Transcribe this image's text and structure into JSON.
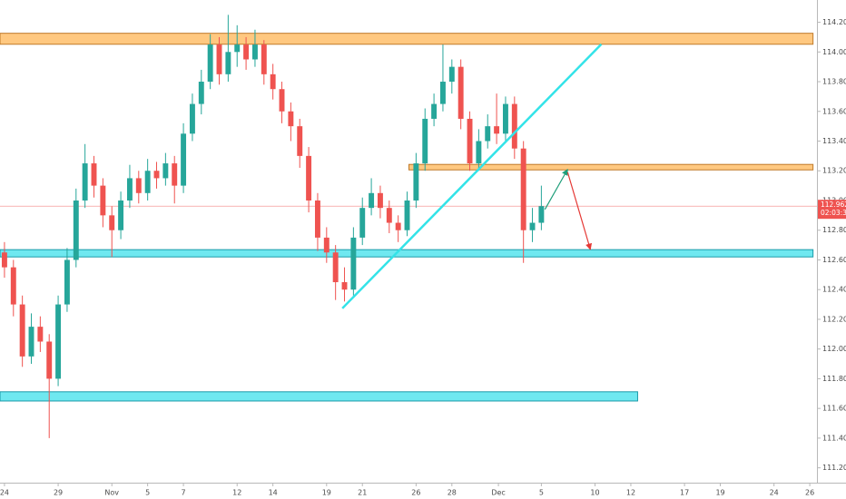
{
  "chart_data": {
    "type": "candlestick",
    "x": [
      0,
      0.5,
      1,
      1.5,
      2,
      2.5,
      3,
      3.5,
      4,
      4.5,
      5,
      5.5,
      6,
      6.5,
      7,
      7.5,
      8,
      8.5,
      9,
      9.5,
      10,
      10.5,
      11,
      11.5,
      12,
      12.5,
      13,
      13.5,
      14,
      14.5,
      15,
      15.5,
      16,
      16.5,
      17,
      17.5,
      18,
      18.5,
      19,
      19.5,
      20,
      20.5,
      21,
      21.5,
      22,
      22.5,
      23,
      23.5,
      24,
      24.5,
      25,
      25.5,
      26,
      26.5,
      27,
      27.5,
      28,
      28.5,
      29,
      29.5,
      30
    ],
    "open": [
      112.65,
      112.55,
      112.3,
      111.95,
      112.15,
      112.05,
      111.8,
      112.3,
      112.6,
      113.0,
      113.25,
      113.1,
      112.9,
      112.8,
      113.0,
      113.15,
      113.05,
      113.2,
      113.15,
      113.25,
      113.1,
      113.45,
      113.65,
      113.8,
      114.05,
      113.85,
      114.0,
      114.05,
      113.95,
      114.05,
      113.85,
      113.75,
      113.6,
      113.5,
      113.3,
      113.0,
      112.75,
      112.65,
      112.45,
      112.4,
      112.75,
      112.95,
      113.05,
      112.95,
      112.85,
      112.8,
      113.0,
      113.25,
      113.55,
      113.65,
      113.8,
      113.9,
      113.55,
      113.25,
      113.4,
      113.5,
      113.45,
      113.65,
      113.35,
      112.8,
      112.85
    ],
    "high": [
      112.72,
      112.6,
      112.36,
      112.24,
      112.22,
      112.1,
      112.36,
      112.68,
      113.08,
      113.38,
      113.3,
      113.15,
      112.96,
      113.06,
      113.24,
      113.2,
      113.28,
      113.26,
      113.32,
      113.3,
      113.52,
      113.72,
      113.88,
      114.12,
      114.1,
      114.25,
      114.18,
      114.1,
      114.15,
      114.08,
      113.92,
      113.8,
      113.66,
      113.55,
      113.36,
      113.05,
      112.82,
      112.7,
      112.55,
      112.82,
      113.02,
      113.15,
      113.1,
      113.0,
      112.9,
      113.06,
      113.32,
      113.62,
      113.72,
      114.05,
      113.95,
      113.95,
      113.6,
      113.48,
      113.58,
      113.72,
      113.7,
      113.7,
      113.4,
      112.95,
      113.1
    ],
    "low": [
      112.48,
      112.22,
      111.88,
      111.9,
      111.98,
      111.4,
      111.75,
      112.25,
      112.55,
      112.95,
      113.02,
      112.82,
      112.62,
      112.74,
      112.95,
      112.98,
      113.0,
      113.08,
      113.1,
      112.98,
      113.05,
      113.4,
      113.58,
      113.75,
      113.78,
      113.8,
      113.9,
      113.88,
      113.9,
      113.78,
      113.68,
      113.52,
      113.4,
      113.22,
      112.92,
      112.66,
      112.58,
      112.33,
      112.32,
      112.36,
      112.7,
      112.9,
      112.88,
      112.78,
      112.72,
      112.76,
      112.95,
      113.2,
      113.5,
      113.6,
      113.72,
      113.48,
      113.2,
      113.2,
      113.35,
      113.38,
      113.4,
      113.28,
      112.58,
      112.72,
      112.8
    ],
    "close": [
      112.55,
      112.3,
      111.95,
      112.15,
      112.05,
      111.8,
      112.3,
      112.6,
      113.0,
      113.25,
      113.1,
      112.9,
      112.8,
      113.0,
      113.15,
      113.05,
      113.2,
      113.15,
      113.25,
      113.1,
      113.45,
      113.65,
      113.8,
      114.05,
      113.85,
      114.0,
      114.05,
      113.95,
      114.05,
      113.85,
      113.75,
      113.6,
      113.5,
      113.3,
      113.0,
      112.75,
      112.65,
      112.45,
      112.4,
      112.75,
      112.95,
      113.05,
      112.95,
      112.85,
      112.8,
      113.0,
      113.25,
      113.55,
      113.65,
      113.8,
      113.9,
      113.55,
      113.25,
      113.4,
      113.5,
      113.45,
      113.65,
      113.35,
      112.8,
      112.85,
      112.962
    ],
    "up_color": "#26a69a",
    "down_color": "#ef5350",
    "xlim": [
      -0.25,
      45.4
    ],
    "ylim": [
      111.1,
      114.35
    ],
    "xticks": [
      {
        "value": 0,
        "label": "24"
      },
      {
        "value": 3,
        "label": "29"
      },
      {
        "value": 6,
        "label": "Nov"
      },
      {
        "value": 8,
        "label": "5"
      },
      {
        "value": 10,
        "label": "7"
      },
      {
        "value": 13,
        "label": "12"
      },
      {
        "value": 15,
        "label": "14"
      },
      {
        "value": 18,
        "label": "19"
      },
      {
        "value": 20,
        "label": "21"
      },
      {
        "value": 23,
        "label": "26"
      },
      {
        "value": 25,
        "label": "28"
      },
      {
        "value": 27.6,
        "label": "Dec"
      },
      {
        "value": 30,
        "label": "5"
      },
      {
        "value": 33,
        "label": "10"
      },
      {
        "value": 35,
        "label": "12"
      },
      {
        "value": 38,
        "label": "17"
      },
      {
        "value": 40,
        "label": "19"
      },
      {
        "value": 43,
        "label": "24"
      },
      {
        "value": 45,
        "label": "26"
      }
    ],
    "yticks": [
      {
        "value": 111.2,
        "label": "111.200"
      },
      {
        "value": 111.4,
        "label": "111.400"
      },
      {
        "value": 111.6,
        "label": "111.600"
      },
      {
        "value": 111.8,
        "label": "111.800"
      },
      {
        "value": 112.0,
        "label": "112.000"
      },
      {
        "value": 112.2,
        "label": "112.200"
      },
      {
        "value": 112.4,
        "label": "112.400"
      },
      {
        "value": 112.6,
        "label": "112.600"
      },
      {
        "value": 112.8,
        "label": "112.800"
      },
      {
        "value": 113.0,
        "label": "113.000"
      },
      {
        "value": 113.2,
        "label": "113.200"
      },
      {
        "value": 113.4,
        "label": "113.400"
      },
      {
        "value": 113.6,
        "label": "113.600"
      },
      {
        "value": 113.8,
        "label": "113.800"
      },
      {
        "value": 114.0,
        "label": "114.000"
      },
      {
        "value": 114.2,
        "label": "114.200"
      }
    ],
    "grid": false,
    "last_price": 112.962,
    "last_price_color": "#ef5350",
    "countdown": "02:03:39",
    "zones": [
      {
        "xlim": [
          -0.25,
          45.18
        ],
        "ylim": [
          114.052,
          114.126
        ],
        "color": "#ffc880",
        "border": "#c07a2a"
      },
      {
        "xlim": [
          22.6,
          45.18
        ],
        "ylim": [
          113.206,
          113.243
        ],
        "color": "#ffc880",
        "border": "#c07a2a"
      },
      {
        "xlim": [
          -0.25,
          45.18
        ],
        "ylim": [
          112.62,
          112.669
        ],
        "color": "#6fe8f0",
        "border": "#1a9aa8"
      },
      {
        "xlim": [
          -0.25,
          35.38
        ],
        "ylim": [
          111.65,
          111.712
        ],
        "color": "#6fe8f0",
        "border": "#1a9aa8"
      }
    ],
    "lines": [
      {
        "x": [
          18.88,
          33.35
        ],
        "y": [
          112.274,
          114.052
        ],
        "color": "#33e3e8",
        "width": 2.5,
        "arrow": false
      },
      {
        "x": [
          30.2,
          31.47
        ],
        "y": [
          112.94,
          113.21
        ],
        "color": "#1e9e7a",
        "width": 1.2,
        "arrow": true
      },
      {
        "x": [
          31.47,
          32.74
        ],
        "y": [
          113.19,
          112.67
        ],
        "color": "#e53935",
        "width": 1.2,
        "arrow": true
      }
    ]
  }
}
